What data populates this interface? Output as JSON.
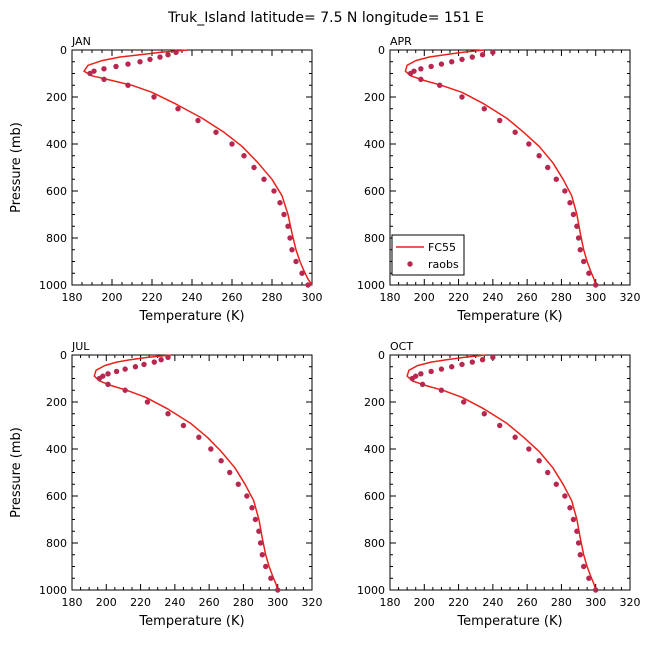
{
  "figure_title": "Truk_Island   latitude= 7.5 N longitude= 151 E",
  "colors": {
    "model": "#e8221b",
    "obs": "#b8274f",
    "axis": "#000000"
  },
  "legend": {
    "placement": "lower-left of APR panel",
    "entries": [
      "FC55",
      "raobs"
    ]
  },
  "chart_data": [
    {
      "type": "line",
      "panel": "JAN",
      "xlabel": "Temperature (K)",
      "ylabel": "Pressure (mb)",
      "xlim": [
        180,
        300
      ],
      "ylim": [
        1000,
        0
      ],
      "y_inverted": true,
      "xticks": [
        180,
        200,
        220,
        240,
        260,
        280,
        300
      ],
      "yticks": [
        0,
        200,
        400,
        600,
        800,
        1000
      ],
      "show_legend": false,
      "series": [
        {
          "name": "FC55",
          "style": "line",
          "x": [
            238,
            224,
            214,
            204,
            195,
            188,
            186,
            190,
            200,
            210,
            220,
            232,
            245,
            256,
            265,
            273,
            280,
            285,
            288,
            290,
            292,
            294,
            296,
            298,
            300
          ],
          "y": [
            0,
            10,
            20,
            30,
            45,
            65,
            90,
            110,
            130,
            150,
            180,
            230,
            290,
            350,
            410,
            480,
            550,
            620,
            700,
            780,
            850,
            900,
            940,
            975,
            1000
          ]
        },
        {
          "name": "raobs",
          "style": "markers",
          "x": [
            232,
            228,
            224,
            219,
            214,
            208,
            202,
            196,
            191,
            189,
            196,
            208,
            221,
            233,
            243,
            252,
            260,
            266,
            271,
            276,
            281,
            284,
            286,
            288,
            289,
            290,
            292,
            295,
            298
          ],
          "y": [
            10,
            20,
            30,
            40,
            50,
            60,
            70,
            80,
            90,
            100,
            125,
            150,
            200,
            250,
            300,
            350,
            400,
            450,
            500,
            550,
            600,
            650,
            700,
            750,
            800,
            850,
            900,
            950,
            1000
          ]
        }
      ]
    },
    {
      "type": "line",
      "panel": "APR",
      "xlabel": "Temperature (K)",
      "ylabel": "",
      "xlim": [
        180,
        320
      ],
      "ylim": [
        1000,
        0
      ],
      "y_inverted": true,
      "xticks": [
        180,
        200,
        220,
        240,
        260,
        280,
        300,
        320
      ],
      "yticks": [
        0,
        200,
        400,
        600,
        800,
        1000
      ],
      "show_legend": true,
      "series": [
        {
          "name": "FC55",
          "style": "line",
          "x": [
            235,
            222,
            212,
            203,
            195,
            190,
            189,
            192,
            200,
            210,
            222,
            235,
            248,
            258,
            267,
            275,
            281,
            286,
            289,
            291,
            293,
            295,
            297,
            299,
            300
          ],
          "y": [
            0,
            10,
            20,
            30,
            45,
            65,
            90,
            110,
            130,
            150,
            180,
            230,
            290,
            350,
            410,
            480,
            550,
            620,
            700,
            780,
            850,
            900,
            940,
            975,
            1000
          ]
        },
        {
          "name": "raobs",
          "style": "markers",
          "x": [
            240,
            234,
            228,
            222,
            216,
            210,
            204,
            198,
            194,
            192,
            198,
            209,
            222,
            235,
            244,
            253,
            261,
            267,
            272,
            277,
            282,
            285,
            287,
            289,
            290,
            291,
            293,
            296,
            300
          ],
          "y": [
            10,
            20,
            30,
            40,
            50,
            60,
            70,
            80,
            90,
            100,
            125,
            150,
            200,
            250,
            300,
            350,
            400,
            450,
            500,
            550,
            600,
            650,
            700,
            750,
            800,
            850,
            900,
            950,
            1000
          ]
        }
      ]
    },
    {
      "type": "line",
      "panel": "JUL",
      "xlabel": "Temperature (K)",
      "ylabel": "Pressure (mb)",
      "xlim": [
        180,
        320
      ],
      "ylim": [
        1000,
        0
      ],
      "y_inverted": true,
      "xticks": [
        180,
        200,
        220,
        240,
        260,
        280,
        300,
        320
      ],
      "yticks": [
        0,
        200,
        400,
        600,
        800,
        1000
      ],
      "show_legend": false,
      "series": [
        {
          "name": "FC55",
          "style": "line",
          "x": [
            238,
            224,
            214,
            206,
            199,
            194,
            193,
            196,
            203,
            212,
            223,
            236,
            249,
            259,
            267,
            275,
            281,
            286,
            289,
            291,
            293,
            295,
            297,
            299,
            300
          ],
          "y": [
            0,
            10,
            20,
            30,
            45,
            65,
            90,
            110,
            130,
            150,
            180,
            230,
            290,
            350,
            410,
            480,
            550,
            620,
            700,
            780,
            850,
            900,
            940,
            975,
            1000
          ]
        },
        {
          "name": "raobs",
          "style": "markers",
          "x": [
            236,
            232,
            228,
            222,
            217,
            211,
            206,
            201,
            198,
            196,
            201,
            211,
            224,
            236,
            245,
            254,
            261,
            267,
            272,
            277,
            282,
            285,
            287,
            289,
            290,
            291,
            293,
            296,
            300
          ],
          "y": [
            10,
            20,
            30,
            40,
            50,
            60,
            70,
            80,
            90,
            100,
            125,
            150,
            200,
            250,
            300,
            350,
            400,
            450,
            500,
            550,
            600,
            650,
            700,
            750,
            800,
            850,
            900,
            950,
            1000
          ]
        }
      ]
    },
    {
      "type": "line",
      "panel": "OCT",
      "xlabel": "Temperature (K)",
      "ylabel": "",
      "xlim": [
        180,
        320
      ],
      "ylim": [
        1000,
        0
      ],
      "y_inverted": true,
      "xticks": [
        180,
        200,
        220,
        240,
        260,
        280,
        300,
        320
      ],
      "yticks": [
        0,
        200,
        400,
        600,
        800,
        1000
      ],
      "show_legend": false,
      "series": [
        {
          "name": "FC55",
          "style": "line",
          "x": [
            236,
            223,
            213,
            204,
            196,
            191,
            190,
            193,
            201,
            211,
            222,
            235,
            248,
            258,
            267,
            275,
            281,
            286,
            289,
            291,
            293,
            295,
            297,
            299,
            300
          ],
          "y": [
            0,
            10,
            20,
            30,
            45,
            65,
            90,
            110,
            130,
            150,
            180,
            230,
            290,
            350,
            410,
            480,
            550,
            620,
            700,
            780,
            850,
            900,
            940,
            975,
            1000
          ]
        },
        {
          "name": "raobs",
          "style": "markers",
          "x": [
            240,
            234,
            228,
            222,
            216,
            210,
            204,
            198,
            195,
            193,
            199,
            210,
            223,
            235,
            244,
            253,
            261,
            267,
            272,
            277,
            282,
            285,
            287,
            289,
            290,
            291,
            293,
            296,
            300
          ],
          "y": [
            10,
            20,
            30,
            40,
            50,
            60,
            70,
            80,
            90,
            100,
            125,
            150,
            200,
            250,
            300,
            350,
            400,
            450,
            500,
            550,
            600,
            650,
            700,
            750,
            800,
            850,
            900,
            950,
            1000
          ]
        }
      ]
    }
  ]
}
